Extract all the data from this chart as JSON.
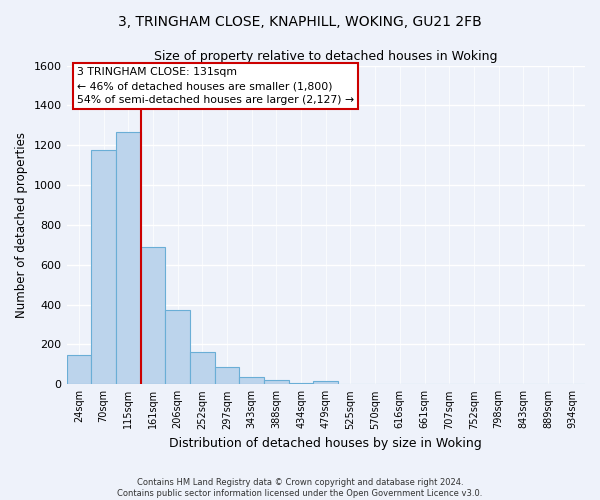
{
  "title_line1": "3, TRINGHAM CLOSE, KNAPHILL, WOKING, GU21 2FB",
  "title_line2": "Size of property relative to detached houses in Woking",
  "xlabel": "Distribution of detached houses by size in Woking",
  "ylabel": "Number of detached properties",
  "bin_labels": [
    "24sqm",
    "70sqm",
    "115sqm",
    "161sqm",
    "206sqm",
    "252sqm",
    "297sqm",
    "343sqm",
    "388sqm",
    "434sqm",
    "479sqm",
    "525sqm",
    "570sqm",
    "616sqm",
    "661sqm",
    "707sqm",
    "752sqm",
    "798sqm",
    "843sqm",
    "889sqm",
    "934sqm"
  ],
  "bar_values": [
    148,
    1175,
    1265,
    688,
    375,
    163,
    88,
    35,
    22,
    5,
    15,
    3,
    0,
    0,
    0,
    0,
    0,
    0,
    0,
    0,
    0
  ],
  "bar_color": "#bcd4ec",
  "bar_edge_color": "#6aaed6",
  "background_color": "#eef2fa",
  "grid_color": "#ffffff",
  "vline_x": 2.5,
  "vline_color": "#cc0000",
  "annotation_text": "3 TRINGHAM CLOSE: 131sqm\n← 46% of detached houses are smaller (1,800)\n54% of semi-detached houses are larger (2,127) →",
  "annotation_box_color": "#ffffff",
  "annotation_box_edge": "#cc0000",
  "footer_text": "Contains HM Land Registry data © Crown copyright and database right 2024.\nContains public sector information licensed under the Open Government Licence v3.0.",
  "ylim": [
    0,
    1600
  ],
  "yticks": [
    0,
    200,
    400,
    600,
    800,
    1000,
    1200,
    1400,
    1600
  ]
}
